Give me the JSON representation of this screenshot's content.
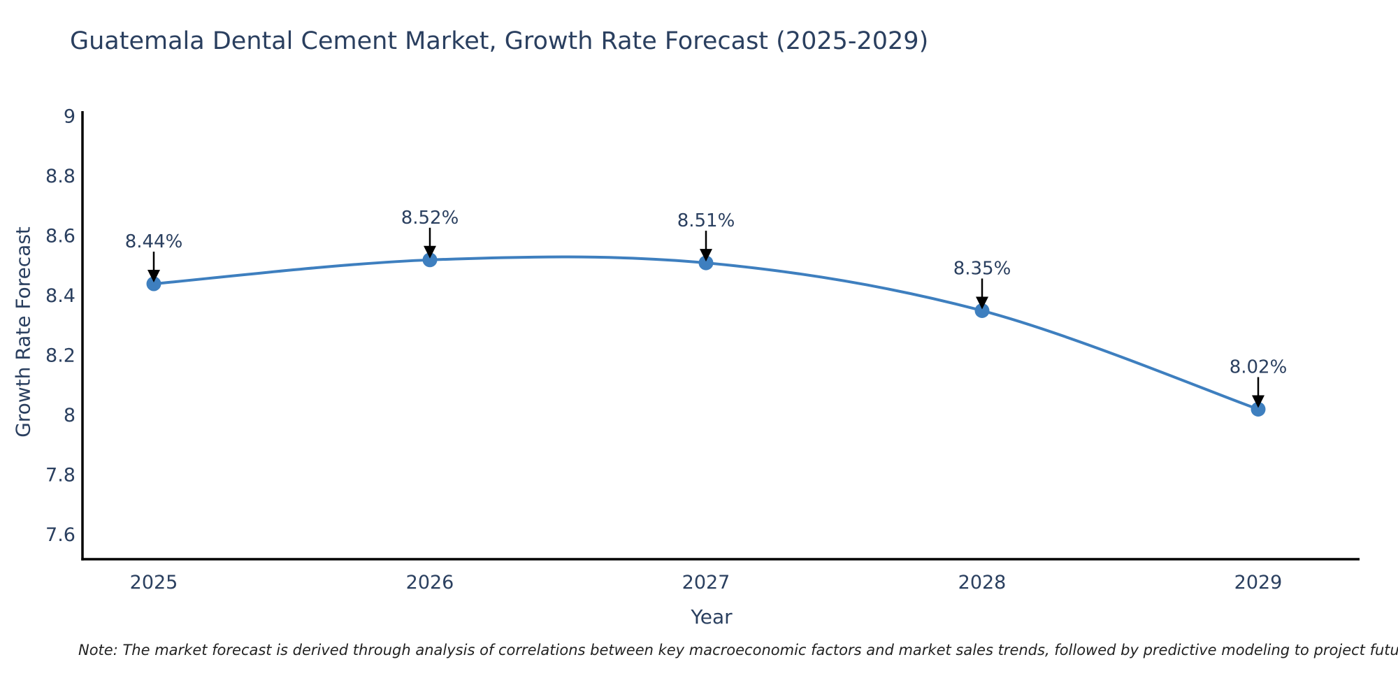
{
  "chart_data": {
    "type": "line",
    "title": "Guatemala Dental Cement Market, Growth Rate Forecast (2025-2029)",
    "xlabel": "Year",
    "ylabel": "Growth Rate Forecast",
    "x": [
      2025,
      2026,
      2027,
      2028,
      2029
    ],
    "categories": [
      "2025",
      "2026",
      "2027",
      "2028",
      "2029"
    ],
    "series": [
      {
        "name": "Growth Rate Forecast",
        "values": [
          8.44,
          8.52,
          8.51,
          8.35,
          8.02
        ]
      }
    ],
    "point_labels": [
      "8.44%",
      "8.52%",
      "8.51%",
      "8.35%",
      "8.02%"
    ],
    "y_ticks": [
      "9",
      "8.8",
      "8.6",
      "8.4",
      "8.2",
      "8",
      "7.8",
      "7.6"
    ],
    "ylim": [
      7.518,
      9.018
    ],
    "grid": false,
    "legend_position": "none",
    "line_style": "spline",
    "line_color": "#3e7fbf",
    "marker_color": "#3e7fbf",
    "annotation_arrow_color": "#000000",
    "axis_line_color": "#000000",
    "text_color": "#2a3f5f",
    "note": "Note: The market forecast is derived through analysis of correlations between key macroeconomic factors and market sales trends, followed by predictive modeling to project future sales"
  }
}
